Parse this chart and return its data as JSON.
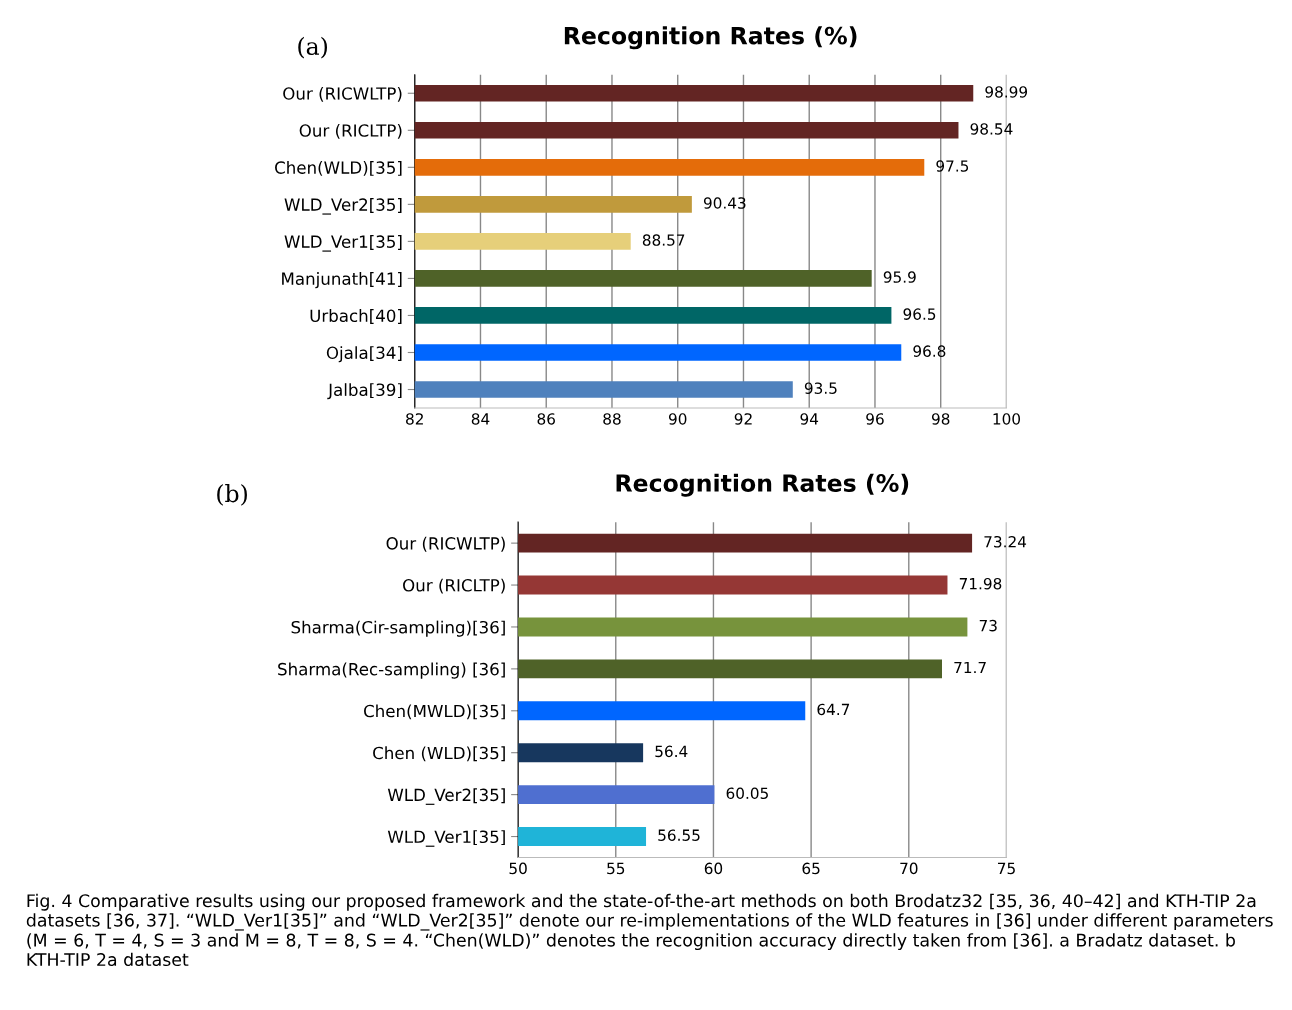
{
  "chart_data": [
    {
      "type": "bar",
      "orientation": "horizontal",
      "title": "Recognition Rates (%)",
      "annotations": [
        "(a)"
      ],
      "categories": [
        "Our (RICWLTP)",
        "Our (RICLTP)",
        "Chen(WLD)[35]",
        "WLD_Ver2[35]",
        "WLD_Ver1[35]",
        "Manjunath[41]",
        "Urbach[40]",
        "Ojala[34]",
        "Jalba[39]"
      ],
      "values": [
        98.99,
        98.54,
        97.5,
        90.43,
        88.57,
        95.9,
        96.5,
        96.8,
        93.5
      ],
      "colors": [
        "#632523",
        "#632523",
        "#e46c0a",
        "#c09a3c",
        "#e6cf7a",
        "#4f6228",
        "#006666",
        "#0066ff",
        "#4f81bd"
      ],
      "xlim": [
        82,
        100
      ],
      "xticks": [
        82,
        84,
        86,
        88,
        90,
        92,
        94,
        96,
        98,
        100
      ],
      "grid": "x",
      "data_labels": true
    },
    {
      "type": "bar",
      "orientation": "horizontal",
      "title": "Recognition Rates (%)",
      "annotations": [
        "(b)",
        "Fig. 4 Comparative results using our proposed framework and the state-of-the-art methods on both Brodatz32 [35, 36, 40–42] and KTH-TIP 2a datasets [36, 37]. “WLD_Ver1[35]” and “WLD_Ver2[35]” denote our re-implementations of the WLD features in [36] under different parameters (M = 6, T = 4, S = 3 and M = 8, T = 8, S = 4. “Chen(WLD)” denotes the recognition accuracy directly taken from [36]. a Bradatz dataset. b KTH-TIP 2a dataset"
      ],
      "categories": [
        "Our (RICWLTP)",
        "Our (RICLTP)",
        "Sharma(Cir-sampling)[36]",
        "Sharma(Rec-sampling) [36]",
        "Chen(MWLD)[35]",
        "Chen (WLD)[35]",
        "WLD_Ver2[35]",
        "WLD_Ver1[35]"
      ],
      "values": [
        73.24,
        71.98,
        73,
        71.7,
        64.7,
        56.4,
        60.05,
        56.55
      ],
      "colors": [
        "#632523",
        "#953735",
        "#77933c",
        "#4f6228",
        "#0066ff",
        "#17375e",
        "#4f6fd0",
        "#1fb4d8"
      ],
      "xlim": [
        50,
        75
      ],
      "xticks": [
        50,
        55,
        60,
        65,
        70,
        75
      ],
      "grid": "x",
      "data_labels": true
    }
  ]
}
